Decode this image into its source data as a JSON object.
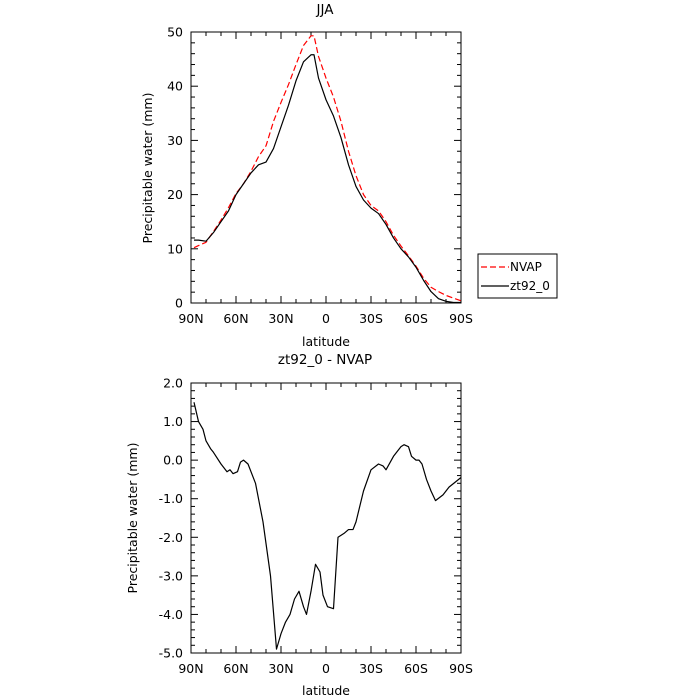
{
  "chart_data": [
    {
      "type": "line",
      "title": "JJA",
      "xlabel": "latitude",
      "ylabel": "Precipitable water  (mm)",
      "xlim": [
        90,
        -90
      ],
      "ylim": [
        0,
        50
      ],
      "x_ticks": [
        90,
        60,
        30,
        0,
        -30,
        -60,
        -90
      ],
      "x_tick_labels": [
        "90N",
        "60N",
        "30N",
        "0",
        "30S",
        "60S",
        "90S"
      ],
      "y_ticks": [
        0,
        10,
        20,
        30,
        40,
        50
      ],
      "y_tick_labels": [
        "0",
        "10",
        "20",
        "30",
        "40",
        "50"
      ],
      "legend": "right",
      "series": [
        {
          "name": "NVAP",
          "color": "#ff0000",
          "style": "dashed",
          "x": [
            88,
            85,
            80,
            75,
            70,
            65,
            60,
            55,
            50,
            45,
            40,
            35,
            30,
            25,
            20,
            15,
            10,
            8,
            5,
            0,
            -5,
            -10,
            -15,
            -20,
            -25,
            -30,
            -35,
            -40,
            -45,
            -50,
            -55,
            -60,
            -65,
            -70,
            -75,
            -80,
            -85,
            -90
          ],
          "y": [
            10.2,
            10.6,
            11.2,
            13.2,
            15.3,
            17.6,
            20.2,
            22.0,
            24.3,
            27.0,
            29.0,
            33.5,
            37.0,
            40.3,
            44.0,
            47.5,
            49.3,
            49.3,
            45.5,
            41.5,
            38.0,
            33.5,
            28.0,
            23.5,
            20.0,
            18.0,
            17.0,
            15.0,
            12.5,
            10.5,
            8.7,
            6.8,
            4.6,
            2.9,
            2.1,
            1.4,
            0.9,
            0.4
          ]
        },
        {
          "name": "zt92_0",
          "color": "#000000",
          "style": "solid",
          "x": [
            88,
            85,
            80,
            75,
            70,
            65,
            60,
            55,
            50,
            45,
            40,
            35,
            30,
            25,
            20,
            15,
            10,
            8,
            5,
            0,
            -5,
            -10,
            -15,
            -20,
            -25,
            -30,
            -35,
            -40,
            -45,
            -50,
            -55,
            -60,
            -65,
            -70,
            -75,
            -80,
            -85,
            -90
          ],
          "y": [
            11.6,
            11.6,
            11.4,
            13.0,
            15.0,
            17.0,
            20.0,
            22.0,
            24.0,
            25.5,
            26.0,
            28.5,
            32.5,
            36.5,
            41.0,
            44.5,
            45.8,
            45.8,
            41.5,
            37.5,
            34.5,
            30.5,
            25.5,
            21.5,
            19.0,
            17.5,
            16.5,
            14.5,
            12.0,
            10.0,
            8.5,
            6.6,
            4.2,
            2.1,
            0.8,
            0.3,
            0.1,
            0.1
          ]
        }
      ]
    },
    {
      "type": "line",
      "title": "zt92_0 - NVAP",
      "xlabel": "latitude",
      "ylabel": "Precipitable  water  (mm)",
      "xlim": [
        90,
        -90
      ],
      "ylim": [
        -5.0,
        2.0
      ],
      "x_ticks": [
        90,
        60,
        30,
        0,
        -30,
        -60,
        -90
      ],
      "x_tick_labels": [
        "90N",
        "60N",
        "30N",
        "0",
        "30S",
        "60S",
        "90S"
      ],
      "y_ticks": [
        -5.0,
        -4.0,
        -3.0,
        -2.0,
        -1.0,
        0.0,
        1.0,
        2.0
      ],
      "y_tick_labels": [
        "-5.0",
        "-4.0",
        "-3.0",
        "-2.0",
        "-1.0",
        "0.0",
        "1.0",
        "2.0"
      ],
      "series": [
        {
          "color": "#000000",
          "style": "solid",
          "x": [
            88,
            85,
            82,
            80,
            77,
            75,
            70,
            66,
            64,
            62,
            59,
            57,
            55,
            52,
            47,
            42,
            37,
            33,
            30,
            27,
            24,
            21,
            18,
            15,
            13,
            10,
            7,
            4,
            2,
            -1,
            -5,
            -8,
            -12,
            -15,
            -18,
            -20,
            -25,
            -30,
            -35,
            -38,
            -40,
            -45,
            -50,
            -52,
            -55,
            -57,
            -60,
            -62,
            -64,
            -67,
            -70,
            -73,
            -78,
            -82,
            -90
          ],
          "y": [
            1.5,
            1.0,
            0.8,
            0.5,
            0.3,
            0.2,
            -0.1,
            -0.3,
            -0.25,
            -0.35,
            -0.3,
            -0.05,
            -0.0,
            -0.1,
            -0.6,
            -1.6,
            -3.0,
            -4.9,
            -4.5,
            -4.2,
            -4.0,
            -3.6,
            -3.4,
            -3.8,
            -4.0,
            -3.4,
            -2.7,
            -2.9,
            -3.5,
            -3.8,
            -3.85,
            -2.0,
            -1.9,
            -1.8,
            -1.8,
            -1.6,
            -0.8,
            -0.25,
            -0.1,
            -0.15,
            -0.25,
            0.1,
            0.35,
            0.4,
            0.35,
            0.1,
            0.0,
            0.0,
            -0.1,
            -0.5,
            -0.8,
            -1.05,
            -0.9,
            -0.7,
            -0.45
          ]
        }
      ]
    }
  ]
}
